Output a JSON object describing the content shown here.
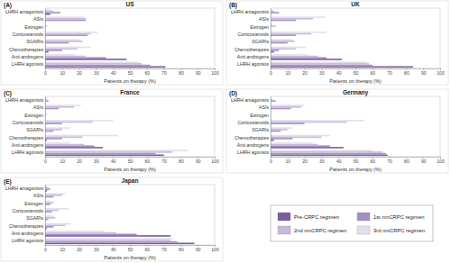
{
  "chart_data": [
    {
      "type": "bar",
      "orientation": "horizontal",
      "title": "US",
      "annotations": [
        "(A)"
      ],
      "x_label": "Patients on therapy (%)",
      "categories": [
        "LHRH antagonists",
        "ASIs",
        "Estrogen",
        "Corticosteroids",
        "SGARIs",
        "Chemotherapies",
        "Anti-androgens",
        "LHRH agonists"
      ],
      "xlim": [
        0,
        100
      ],
      "xticks": [
        0,
        10,
        20,
        30,
        40,
        50,
        60,
        70,
        80,
        90,
        100
      ],
      "series": [
        {
          "name": "Pre-CRPC regimen",
          "color": "#7b5c9f",
          "values": [
            3,
            0,
            0,
            0,
            0,
            2,
            48,
            71
          ]
        },
        {
          "name": "1st nmCRPC regimen",
          "color": "#a48fc4",
          "values": [
            9,
            24,
            0,
            25,
            14,
            10,
            36,
            62
          ]
        },
        {
          "name": "2nd nmCRPC regimen",
          "color": "#c6b9da",
          "values": [
            5,
            24,
            1,
            27,
            22,
            19,
            24,
            57
          ]
        },
        {
          "name": "3rd nmCRPC regimen",
          "color": "#e4deec",
          "values": [
            3,
            23,
            0,
            31,
            20,
            27,
            18,
            55
          ]
        }
      ]
    },
    {
      "type": "bar",
      "orientation": "horizontal",
      "title": "UK",
      "annotations": [
        "(B)"
      ],
      "x_label": "Patients on therapy (%)",
      "categories": [
        "LHRH antagonists",
        "ASIs",
        "Estrogen",
        "Corticosteroids",
        "SGARIs",
        "Chemotherapies",
        "Anti-androgens",
        "LHRH agonists"
      ],
      "xlim": [
        0,
        100
      ],
      "xticks": [
        0,
        10,
        20,
        30,
        40,
        50,
        60,
        70,
        80,
        90,
        100
      ],
      "series": [
        {
          "name": "Pre-CRPC regimen",
          "color": "#7b5c9f",
          "values": [
            0,
            0,
            0,
            0,
            0,
            2,
            42,
            84
          ]
        },
        {
          "name": "1st nmCRPC regimen",
          "color": "#a48fc4",
          "values": [
            5,
            15,
            0,
            15,
            10,
            5,
            33,
            60
          ]
        },
        {
          "name": "2nd nmCRPC regimen",
          "color": "#c6b9da",
          "values": [
            2,
            25,
            3,
            24,
            14,
            15,
            28,
            58
          ]
        },
        {
          "name": "3rd nmCRPC regimen",
          "color": "#e4deec",
          "values": [
            1,
            32,
            1,
            33,
            13,
            21,
            22,
            57
          ]
        }
      ]
    },
    {
      "type": "bar",
      "orientation": "horizontal",
      "title": "France",
      "annotations": [
        "(C)"
      ],
      "x_label": "Patients on therapy (%)",
      "categories": [
        "LHRH antagonists",
        "ASIs",
        "Estrogen",
        "Corticosteroids",
        "SGARIs",
        "Chemotherapies",
        "Anti-androgens",
        "LHRH agonists"
      ],
      "xlim": [
        0,
        100
      ],
      "xticks": [
        0,
        10,
        20,
        30,
        40,
        50,
        60,
        70,
        80,
        90,
        100
      ],
      "series": [
        {
          "name": "Pre-CRPC regimen",
          "color": "#7b5c9f",
          "values": [
            0,
            0,
            0,
            0,
            0,
            1,
            34,
            70
          ]
        },
        {
          "name": "1st nmCRPC regimen",
          "color": "#a48fc4",
          "values": [
            2,
            8,
            0,
            10,
            5,
            10,
            29,
            65
          ]
        },
        {
          "name": "2nd nmCRPC regimen",
          "color": "#c6b9da",
          "values": [
            1,
            17,
            1,
            28,
            10,
            22,
            23,
            75
          ]
        },
        {
          "name": "3rd nmCRPC regimen",
          "color": "#e4deec",
          "values": [
            0,
            21,
            0,
            40,
            15,
            43,
            15,
            84
          ]
        }
      ]
    },
    {
      "type": "bar",
      "orientation": "horizontal",
      "title": "Germany",
      "annotations": [
        "(D)"
      ],
      "x_label": "Patients on therapy (%)",
      "categories": [
        "LHRH antagonists",
        "ASIs",
        "Estrogen",
        "Corticosteroids",
        "SGARIs",
        "Chemotherapies",
        "Anti-androgens",
        "LHRH agonists"
      ],
      "xlim": [
        0,
        100
      ],
      "xticks": [
        0,
        10,
        20,
        30,
        40,
        50,
        60,
        70,
        80,
        90,
        100
      ],
      "series": [
        {
          "name": "Pre-CRPC regimen",
          "color": "#7b5c9f",
          "values": [
            0,
            0,
            0,
            0,
            0,
            2,
            43,
            69
          ]
        },
        {
          "name": "1st nmCRPC regimen",
          "color": "#a48fc4",
          "values": [
            3,
            12,
            0,
            20,
            6,
            13,
            35,
            68
          ]
        },
        {
          "name": "2nd nmCRPC regimen",
          "color": "#c6b9da",
          "values": [
            1,
            18,
            0,
            45,
            10,
            30,
            28,
            66
          ]
        },
        {
          "name": "3rd nmCRPC regimen",
          "color": "#e4deec",
          "values": [
            0,
            20,
            0,
            55,
            13,
            35,
            25,
            60
          ]
        }
      ]
    },
    {
      "type": "bar",
      "orientation": "horizontal",
      "title": "Japan",
      "annotations": [
        "(E)"
      ],
      "x_label": "Patients on therapy (%)",
      "legend": "lower right",
      "categories": [
        "LHRH antagonists",
        "ASIs",
        "Estrogen",
        "Corticosteroids",
        "SGARIs",
        "Chemotherapies",
        "Anti-androgens",
        "LHRH agonists"
      ],
      "xlim": [
        0,
        100
      ],
      "xticks": [
        0,
        10,
        20,
        30,
        40,
        50,
        60,
        70,
        80,
        90,
        100
      ],
      "series": [
        {
          "name": "Pre-CRPC regimen",
          "color": "#7b5c9f",
          "values": [
            1,
            0,
            0,
            0,
            0,
            1,
            74,
            88
          ]
        },
        {
          "name": "1st nmCRPC regimen",
          "color": "#a48fc4",
          "values": [
            3,
            5,
            3,
            4,
            2,
            5,
            54,
            78
          ]
        },
        {
          "name": "2nd nmCRPC regimen",
          "color": "#c6b9da",
          "values": [
            2,
            10,
            5,
            8,
            6,
            12,
            42,
            74
          ]
        },
        {
          "name": "3rd nmCRPC regimen",
          "color": "#e4deec",
          "values": [
            1,
            12,
            3,
            14,
            5,
            15,
            35,
            75
          ]
        }
      ]
    }
  ]
}
